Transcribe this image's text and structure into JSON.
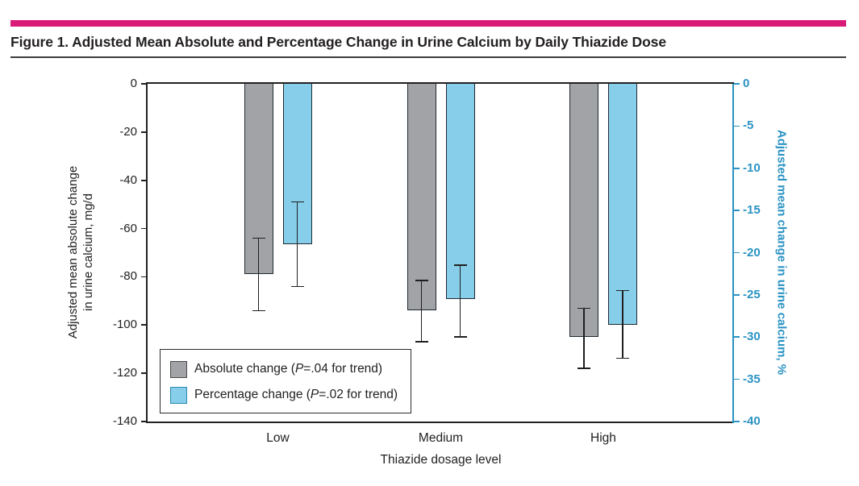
{
  "figure": {
    "title": "Figure 1. Adjusted Mean Absolute and Percentage Change in Urine Calcium by Daily Thiazide Dose",
    "accent_color": "#d91a77"
  },
  "chart_data": {
    "type": "bar",
    "categories": [
      "Low",
      "Medium",
      "High"
    ],
    "xlabel": "Thiazide dosage level",
    "grid": false,
    "legend_position": "inside bottom-left",
    "left_axis": {
      "label_line1": "Adjusted mean absolute change",
      "label_line2": "in urine calcium, mg/d",
      "range": [
        0,
        -140
      ],
      "ticks": [
        0,
        -20,
        -40,
        -60,
        -80,
        -100,
        -120,
        -140
      ],
      "color": "#232021"
    },
    "right_axis": {
      "label": "Adjusted mean change in urine calcium, %",
      "range": [
        0,
        -40
      ],
      "ticks": [
        0,
        -5,
        -10,
        -15,
        -20,
        -25,
        -30,
        -35,
        -40
      ],
      "color": "#2a93c3"
    },
    "series": [
      {
        "name": "Absolute change",
        "axis": "left",
        "fill": "#a1a3a6",
        "border": "#1f2a31",
        "swatch_border": "#4a4a4a",
        "values": [
          -79,
          -94,
          -105
        ],
        "ci": [
          [
            -64,
            -94
          ],
          [
            -81.5,
            -107
          ],
          [
            -93,
            -118
          ]
        ],
        "p_note": {
          "pre": "Absolute change (",
          "p": "P",
          "post": "=.04 for trend)"
        }
      },
      {
        "name": "Percentage change",
        "axis": "right",
        "fill": "#87ceea",
        "border": "#1f2a31",
        "swatch_border": "#2c89ad",
        "values": [
          -19,
          -25.5,
          -28.5
        ],
        "ci": [
          [
            -14,
            -24
          ],
          [
            -21.5,
            -30
          ],
          [
            -24.5,
            -32.5
          ]
        ],
        "p_note": {
          "pre": "Percentage change (",
          "p": "P",
          "post": "=.02 for trend)"
        }
      }
    ]
  }
}
